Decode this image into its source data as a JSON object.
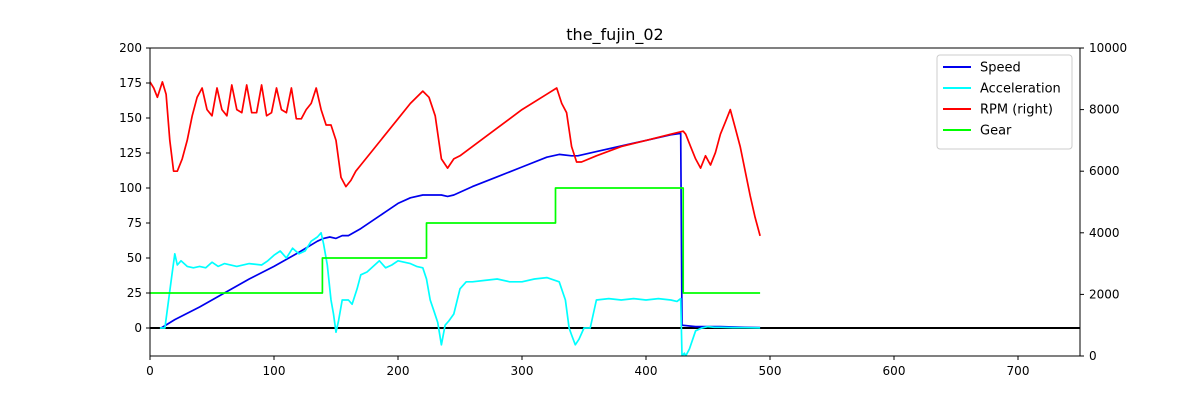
{
  "chart_data": {
    "type": "line",
    "title": "the_fujin_02",
    "xlim": [
      0,
      750
    ],
    "ylim_left": [
      -20,
      200
    ],
    "ylim_right": [
      0,
      10000
    ],
    "x_ticks": [
      0,
      100,
      200,
      300,
      400,
      500,
      600,
      700
    ],
    "y_ticks_left": [
      0,
      25,
      50,
      75,
      100,
      125,
      150,
      175,
      200
    ],
    "y_ticks_right": [
      0,
      2000,
      4000,
      6000,
      8000,
      10000
    ],
    "grid": false,
    "legend_position": "top-right",
    "zero_line": 0,
    "series": [
      {
        "name": "Speed",
        "color": "#0000ee",
        "axis": "left",
        "x": [
          9,
          20,
          40,
          60,
          80,
          100,
          120,
          135,
          140,
          145,
          150,
          155,
          160,
          170,
          180,
          190,
          200,
          210,
          220,
          225,
          235,
          240,
          245,
          260,
          280,
          300,
          320,
          330,
          340,
          345,
          360,
          380,
          400,
          420,
          428,
          429,
          440,
          460,
          480,
          492
        ],
        "y": [
          0,
          6,
          15,
          25,
          35,
          44,
          54,
          62,
          64,
          65,
          64,
          66,
          66,
          71,
          77,
          83,
          89,
          93,
          95,
          95,
          95,
          94,
          95,
          101,
          108,
          115,
          122,
          124,
          123,
          123,
          126,
          130,
          134,
          138,
          139,
          2,
          1,
          1,
          0.5,
          0.3
        ]
      },
      {
        "name": "Acceleration",
        "color": "#00ffff",
        "axis": "left",
        "x": [
          8,
          12,
          15,
          18,
          20,
          22,
          25,
          30,
          35,
          40,
          45,
          50,
          55,
          60,
          70,
          80,
          90,
          95,
          100,
          105,
          110,
          115,
          120,
          125,
          130,
          135,
          138,
          140,
          143,
          146,
          148,
          150,
          152,
          155,
          160,
          163,
          167,
          170,
          175,
          180,
          185,
          190,
          195,
          200,
          205,
          210,
          215,
          220,
          223,
          226,
          229,
          232,
          235,
          238,
          241,
          245,
          250,
          255,
          260,
          270,
          280,
          290,
          300,
          310,
          320,
          330,
          335,
          338,
          340,
          343,
          346,
          350,
          355,
          360,
          370,
          380,
          390,
          400,
          410,
          420,
          425,
          428,
          429,
          431,
          432,
          435,
          440,
          445,
          450,
          455,
          460,
          470,
          480,
          492
        ],
        "y": [
          0,
          0,
          20,
          40,
          53,
          45,
          48,
          44,
          43,
          44,
          43,
          47,
          44,
          46,
          44,
          46,
          45,
          48,
          52,
          55,
          50,
          57,
          53,
          55,
          62,
          65,
          68,
          60,
          45,
          20,
          10,
          -3,
          5,
          20,
          20,
          17,
          28,
          38,
          40,
          44,
          48,
          43,
          45,
          48,
          47,
          46,
          44,
          43,
          35,
          20,
          12,
          4,
          -12,
          2,
          5,
          10,
          28,
          33,
          33,
          34,
          35,
          33,
          33,
          35,
          36,
          33,
          20,
          0,
          -5,
          -12,
          -8,
          0,
          0,
          20,
          21,
          20,
          21,
          20,
          21,
          20,
          19,
          21,
          -20,
          -18,
          -20,
          -15,
          -2,
          0,
          1,
          0.5,
          0.5,
          0.3,
          0.2,
          0.1
        ]
      },
      {
        "name": "RPM (right)",
        "color": "#ff0000",
        "axis": "right",
        "x": [
          0,
          3,
          6,
          10,
          13,
          16,
          19,
          22,
          26,
          30,
          34,
          38,
          42,
          46,
          50,
          54,
          58,
          62,
          66,
          70,
          74,
          78,
          82,
          86,
          90,
          94,
          98,
          102,
          106,
          110,
          114,
          118,
          122,
          126,
          130,
          134,
          138,
          142,
          146,
          150,
          154,
          158,
          162,
          166,
          170,
          180,
          190,
          200,
          210,
          220,
          225,
          230,
          235,
          240,
          245,
          250,
          260,
          280,
          300,
          320,
          328,
          332,
          336,
          340,
          344,
          348,
          360,
          380,
          400,
          420,
          430,
          432,
          436,
          440,
          444,
          448,
          452,
          456,
          460,
          464,
          468,
          472,
          476,
          480,
          484,
          488,
          492
        ],
        "y": [
          8900,
          8700,
          8400,
          8900,
          8500,
          7000,
          6000,
          6000,
          6400,
          7000,
          7800,
          8400,
          8700,
          8000,
          7800,
          8700,
          8000,
          7800,
          8800,
          8000,
          7900,
          8800,
          7900,
          7900,
          8800,
          7800,
          7900,
          8700,
          8000,
          7900,
          8700,
          7700,
          7700,
          8000,
          8200,
          8700,
          8000,
          7500,
          7500,
          7000,
          5800,
          5500,
          5700,
          6000,
          6200,
          6700,
          7200,
          7700,
          8200,
          8600,
          8400,
          7800,
          6400,
          6100,
          6400,
          6500,
          6800,
          7400,
          8000,
          8500,
          8700,
          8200,
          7900,
          6800,
          6300,
          6300,
          6500,
          6800,
          7000,
          7200,
          7300,
          7200,
          6800,
          6400,
          6100,
          6500,
          6200,
          6600,
          7200,
          7600,
          8000,
          7400,
          6800,
          6000,
          5200,
          4500,
          3900
        ]
      },
      {
        "name": "Gear",
        "color": "#00ff00",
        "axis": "left",
        "x": [
          0,
          139,
          139,
          223,
          223,
          327,
          327,
          430,
          430,
          492
        ],
        "y": [
          25,
          25,
          50,
          50,
          75,
          75,
          100,
          100,
          25,
          25
        ]
      }
    ]
  }
}
